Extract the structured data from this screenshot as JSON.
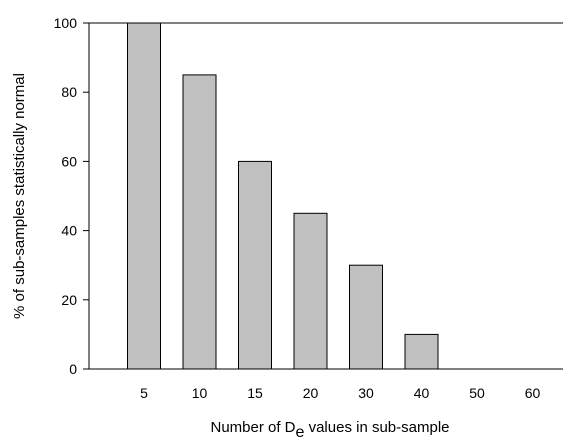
{
  "colors": {
    "bar_fill": "#c0c0c0",
    "bar_stroke": "#000000",
    "axis": "#000000"
  },
  "chart_data": {
    "type": "bar",
    "categories": [
      "5",
      "10",
      "15",
      "20",
      "30",
      "40",
      "50",
      "60"
    ],
    "values": [
      100,
      85,
      60,
      45,
      30,
      10,
      0,
      0
    ],
    "xlabel": "Number of De values in sub-sample",
    "xlabel_parts": {
      "before": "Number of D",
      "subscript": "e",
      "after": " values in sub-sample"
    },
    "ylabel": "% of sub-samples statistically normal",
    "ylim": [
      0,
      100
    ],
    "yticks": [
      "0",
      "20",
      "40",
      "60",
      "80",
      "100"
    ],
    "grid": false,
    "legend": "none"
  }
}
